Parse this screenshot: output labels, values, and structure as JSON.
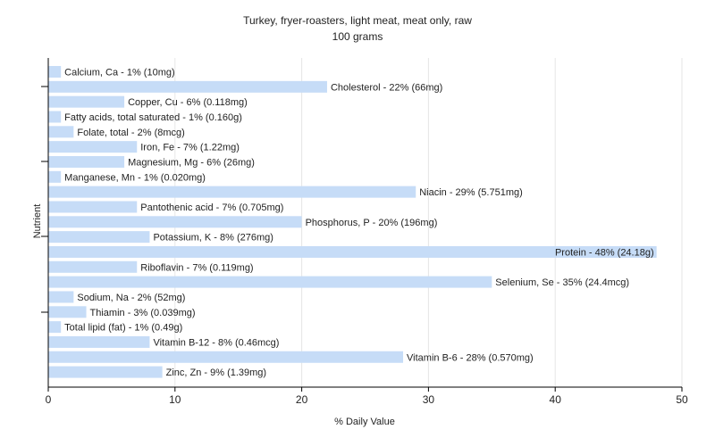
{
  "chart_data": {
    "type": "bar",
    "orientation": "horizontal",
    "title": "Turkey, fryer-roasters, light meat, meat only, raw",
    "subtitle": "100 grams",
    "xlabel": "% Daily Value",
    "ylabel": "Nutrient",
    "xlim": [
      0,
      50
    ],
    "xticks": [
      0,
      10,
      20,
      30,
      40,
      50
    ],
    "grid": true,
    "bar_color": "#c6dcf7",
    "categories": [
      "Calcium, Ca",
      "Cholesterol",
      "Copper, Cu",
      "Fatty acids, total saturated",
      "Folate, total",
      "Iron, Fe",
      "Magnesium, Mg",
      "Manganese, Mn",
      "Niacin",
      "Pantothenic acid",
      "Phosphorus, P",
      "Potassium, K",
      "Protein",
      "Riboflavin",
      "Selenium, Se",
      "Sodium, Na",
      "Thiamin",
      "Total lipid (fat)",
      "Vitamin B-12",
      "Vitamin B-6",
      "Zinc, Zn"
    ],
    "values": [
      1,
      22,
      6,
      1,
      2,
      7,
      6,
      1,
      29,
      7,
      20,
      8,
      48,
      7,
      35,
      2,
      3,
      1,
      8,
      28,
      9
    ],
    "labels": [
      "Calcium, Ca - 1% (10mg)",
      "Cholesterol - 22% (66mg)",
      "Copper, Cu - 6% (0.118mg)",
      "Fatty acids, total saturated - 1% (0.160g)",
      "Folate, total - 2% (8mcg)",
      "Iron, Fe - 7% (1.22mg)",
      "Magnesium, Mg - 6% (26mg)",
      "Manganese, Mn - 1% (0.020mg)",
      "Niacin - 29% (5.751mg)",
      "Pantothenic acid - 7% (0.705mg)",
      "Phosphorus, P - 20% (196mg)",
      "Potassium, K - 8% (276mg)",
      "Protein - 48% (24.18g)",
      "Riboflavin - 7% (0.119mg)",
      "Selenium, Se - 35% (24.4mcg)",
      "Sodium, Na - 2% (52mg)",
      "Thiamin - 3% (0.039mg)",
      "Total lipid (fat) - 1% (0.49g)",
      "Vitamin B-12 - 8% (0.46mcg)",
      "Vitamin B-6 - 28% (0.570mg)",
      "Zinc, Zn - 9% (1.39mg)"
    ]
  }
}
